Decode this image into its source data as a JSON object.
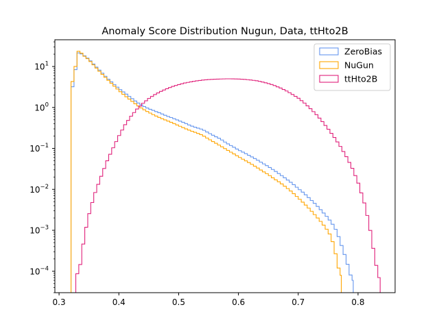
{
  "chart_data": {
    "type": "line",
    "title": "Anomaly Score Distribution Nugun, Data, ttHto2B",
    "xlabel": "",
    "ylabel": "",
    "xlim": [
      0.293,
      0.862
    ],
    "ylim": [
      3e-05,
      45
    ],
    "yscale": "log",
    "grid": false,
    "legend_position": "top-right",
    "x_ticks": [
      {
        "value": 0.3,
        "label": "0.3"
      },
      {
        "value": 0.4,
        "label": "0.4"
      },
      {
        "value": 0.5,
        "label": "0.5"
      },
      {
        "value": 0.6,
        "label": "0.6"
      },
      {
        "value": 0.7,
        "label": "0.7"
      },
      {
        "value": 0.8,
        "label": "0.8"
      }
    ],
    "y_ticks": [
      {
        "value": 0.0001,
        "base": "10",
        "exp": "−4"
      },
      {
        "value": 0.001,
        "base": "10",
        "exp": "−3"
      },
      {
        "value": 0.01,
        "base": "10",
        "exp": "−2"
      },
      {
        "value": 0.1,
        "base": "10",
        "exp": "−1"
      },
      {
        "value": 1,
        "base": "10",
        "exp": "0"
      },
      {
        "value": 10,
        "base": "10",
        "exp": "1"
      }
    ],
    "series": [
      {
        "name": "ZeroBias",
        "color": "#6495ed",
        "knots": [
          [
            0.32,
            3.2
          ],
          [
            0.325,
            3.2
          ],
          [
            0.33,
            22
          ],
          [
            0.335,
            21
          ],
          [
            0.34,
            19.5
          ],
          [
            0.35,
            15
          ],
          [
            0.36,
            10.5
          ],
          [
            0.37,
            7.5
          ],
          [
            0.38,
            5.3
          ],
          [
            0.39,
            3.9
          ],
          [
            0.4,
            2.9
          ],
          [
            0.41,
            2.25
          ],
          [
            0.42,
            1.75
          ],
          [
            0.43,
            1.35
          ],
          [
            0.44,
            1.1
          ],
          [
            0.45,
            0.93
          ],
          [
            0.46,
            0.82
          ],
          [
            0.47,
            0.72
          ],
          [
            0.48,
            0.62
          ],
          [
            0.49,
            0.55
          ],
          [
            0.5,
            0.48
          ],
          [
            0.51,
            0.42
          ],
          [
            0.52,
            0.36
          ],
          [
            0.53,
            0.32
          ],
          [
            0.54,
            0.29
          ],
          [
            0.55,
            0.24
          ],
          [
            0.56,
            0.2
          ],
          [
            0.57,
            0.17
          ],
          [
            0.58,
            0.135
          ],
          [
            0.59,
            0.112
          ],
          [
            0.6,
            0.092
          ],
          [
            0.61,
            0.078
          ],
          [
            0.62,
            0.065
          ],
          [
            0.63,
            0.054
          ],
          [
            0.64,
            0.044
          ],
          [
            0.65,
            0.036
          ],
          [
            0.66,
            0.029
          ],
          [
            0.67,
            0.023
          ],
          [
            0.68,
            0.018
          ],
          [
            0.69,
            0.014
          ],
          [
            0.7,
            0.0105
          ],
          [
            0.71,
            0.008
          ],
          [
            0.72,
            0.0058
          ],
          [
            0.73,
            0.0042
          ],
          [
            0.74,
            0.0029
          ],
          [
            0.75,
            0.002
          ],
          [
            0.76,
            0.00125
          ],
          [
            0.765,
            0.0009
          ],
          [
            0.77,
            0.00055
          ],
          [
            0.775,
            0.00033
          ],
          [
            0.78,
            0.0002
          ],
          [
            0.785,
            0.00011
          ],
          [
            0.79,
            6e-05
          ]
        ],
        "end": 0.792
      },
      {
        "name": "NuGun",
        "color": "#ffa500",
        "knots": [
          [
            0.32,
            4.3
          ],
          [
            0.325,
            4.3
          ],
          [
            0.33,
            23.5
          ],
          [
            0.335,
            23.5
          ],
          [
            0.34,
            19
          ],
          [
            0.35,
            14.5
          ],
          [
            0.36,
            10
          ],
          [
            0.37,
            7
          ],
          [
            0.38,
            5
          ],
          [
            0.39,
            3.6
          ],
          [
            0.4,
            2.6
          ],
          [
            0.41,
            1.95
          ],
          [
            0.42,
            1.5
          ],
          [
            0.43,
            1.15
          ],
          [
            0.44,
            0.92
          ],
          [
            0.45,
            0.76
          ],
          [
            0.46,
            0.64
          ],
          [
            0.47,
            0.55
          ],
          [
            0.48,
            0.48
          ],
          [
            0.49,
            0.42
          ],
          [
            0.5,
            0.36
          ],
          [
            0.51,
            0.31
          ],
          [
            0.52,
            0.27
          ],
          [
            0.53,
            0.24
          ],
          [
            0.54,
            0.21
          ],
          [
            0.55,
            0.17
          ],
          [
            0.56,
            0.14
          ],
          [
            0.57,
            0.115
          ],
          [
            0.58,
            0.094
          ],
          [
            0.59,
            0.077
          ],
          [
            0.6,
            0.063
          ],
          [
            0.61,
            0.052
          ],
          [
            0.62,
            0.043
          ],
          [
            0.63,
            0.035
          ],
          [
            0.64,
            0.028
          ],
          [
            0.65,
            0.023
          ],
          [
            0.66,
            0.018
          ],
          [
            0.67,
            0.0145
          ],
          [
            0.68,
            0.0112
          ],
          [
            0.69,
            0.0085
          ],
          [
            0.7,
            0.0062
          ],
          [
            0.71,
            0.0045
          ],
          [
            0.72,
            0.0032
          ],
          [
            0.73,
            0.0022
          ],
          [
            0.74,
            0.0015
          ],
          [
            0.75,
            0.00095
          ],
          [
            0.755,
            0.0007
          ],
          [
            0.76,
            0.0004
          ],
          [
            0.765,
            0.00018
          ],
          [
            0.77,
            8e-05
          ]
        ],
        "end": 0.772
      },
      {
        "name": "ttHto2B",
        "color": "#e0207a",
        "knots": [
          [
            0.328,
            7e-05
          ],
          [
            0.335,
            0.00013
          ],
          [
            0.34,
            0.00042
          ],
          [
            0.345,
            0.0011
          ],
          [
            0.35,
            0.0024
          ],
          [
            0.355,
            0.0045
          ],
          [
            0.36,
            0.008
          ],
          [
            0.37,
            0.02
          ],
          [
            0.38,
            0.048
          ],
          [
            0.39,
            0.1
          ],
          [
            0.4,
            0.2
          ],
          [
            0.41,
            0.37
          ],
          [
            0.42,
            0.6
          ],
          [
            0.43,
            0.9
          ],
          [
            0.44,
            1.25
          ],
          [
            0.45,
            1.65
          ],
          [
            0.46,
            2.05
          ],
          [
            0.47,
            2.45
          ],
          [
            0.48,
            2.85
          ],
          [
            0.49,
            3.25
          ],
          [
            0.5,
            3.6
          ],
          [
            0.51,
            3.95
          ],
          [
            0.52,
            4.2
          ],
          [
            0.53,
            4.45
          ],
          [
            0.54,
            4.65
          ],
          [
            0.55,
            4.8
          ],
          [
            0.56,
            4.9
          ],
          [
            0.57,
            4.95
          ],
          [
            0.58,
            5.0
          ],
          [
            0.59,
            5.0
          ],
          [
            0.6,
            4.95
          ],
          [
            0.61,
            4.85
          ],
          [
            0.62,
            4.7
          ],
          [
            0.63,
            4.5
          ],
          [
            0.64,
            4.2
          ],
          [
            0.65,
            3.85
          ],
          [
            0.66,
            3.45
          ],
          [
            0.67,
            3.0
          ],
          [
            0.68,
            2.55
          ],
          [
            0.69,
            2.1
          ],
          [
            0.7,
            1.7
          ],
          [
            0.71,
            1.3
          ],
          [
            0.72,
            0.95
          ],
          [
            0.73,
            0.68
          ],
          [
            0.74,
            0.46
          ],
          [
            0.75,
            0.3
          ],
          [
            0.76,
            0.19
          ],
          [
            0.77,
            0.115
          ],
          [
            0.78,
            0.065
          ],
          [
            0.79,
            0.034
          ],
          [
            0.8,
            0.015
          ],
          [
            0.81,
            0.005
          ],
          [
            0.815,
            0.0025
          ],
          [
            0.82,
            0.0011
          ],
          [
            0.825,
            0.0004
          ],
          [
            0.83,
            0.00015
          ],
          [
            0.835,
            7e-05
          ]
        ],
        "end": 0.837
      }
    ]
  }
}
